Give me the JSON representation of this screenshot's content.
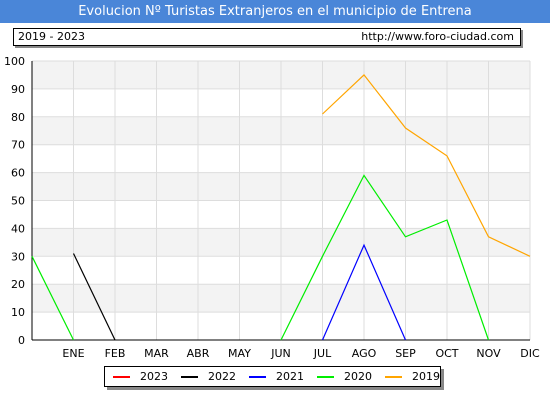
{
  "header": {
    "title": "Evolucion Nº Turistas Extranjeros en el municipio de Entrena",
    "period": "2019 - 2023",
    "url": "http://www.foro-ciudad.com"
  },
  "chart_data": {
    "type": "line",
    "title": "Evolucion Nº Turistas Extranjeros en el municipio de Entrena",
    "categories": [
      "",
      "ENE",
      "FEB",
      "MAR",
      "ABR",
      "MAY",
      "JUN",
      "JUL",
      "AGO",
      "SEP",
      "OCT",
      "NOV",
      "DIC"
    ],
    "ylim": [
      0,
      100
    ],
    "yticks": [
      0,
      10,
      20,
      30,
      40,
      50,
      60,
      70,
      80,
      90,
      100
    ],
    "grid": true,
    "legend_position": "bottom",
    "series": [
      {
        "name": "2023",
        "color": "#ff0000",
        "values": [
          null,
          null,
          null,
          null,
          null,
          null,
          null,
          null,
          null,
          null,
          null,
          null,
          null
        ]
      },
      {
        "name": "2022",
        "color": "#000000",
        "values": [
          null,
          31,
          0,
          null,
          null,
          null,
          null,
          null,
          null,
          null,
          null,
          null,
          null
        ]
      },
      {
        "name": "2021",
        "color": "#0000ff",
        "values": [
          null,
          null,
          null,
          null,
          null,
          null,
          null,
          0,
          34,
          0,
          null,
          null,
          null
        ]
      },
      {
        "name": "2020",
        "color": "#00ee00",
        "values": [
          30,
          0,
          null,
          null,
          null,
          null,
          0,
          30,
          59,
          37,
          43,
          0,
          null
        ]
      },
      {
        "name": "2019",
        "color": "#ffa500",
        "values": [
          null,
          null,
          null,
          null,
          null,
          null,
          null,
          81,
          95,
          76,
          66,
          37,
          30
        ]
      }
    ]
  }
}
